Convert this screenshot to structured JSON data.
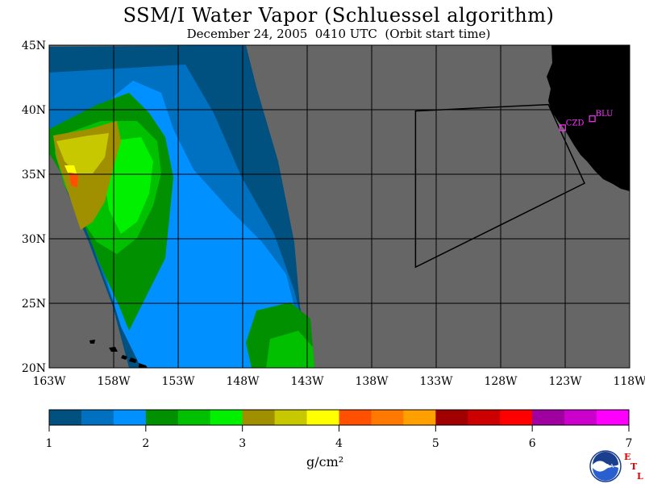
{
  "header": {
    "title": "SSM/I Water Vapor (Schluessel algorithm)",
    "subtitle": "December 24, 2005  0410 UTC  (Orbit start time)"
  },
  "map": {
    "projection": "lat-lon",
    "lon_range": [
      -163,
      -118
    ],
    "lat_range": [
      20,
      45
    ],
    "x_ticks": [
      {
        "lon": -163,
        "label": "163W"
      },
      {
        "lon": -158,
        "label": "158W"
      },
      {
        "lon": -153,
        "label": "153W"
      },
      {
        "lon": -148,
        "label": "148W"
      },
      {
        "lon": -143,
        "label": "143W"
      },
      {
        "lon": -138,
        "label": "138W"
      },
      {
        "lon": -133,
        "label": "133W"
      },
      {
        "lon": -128,
        "label": "128W"
      },
      {
        "lon": -123,
        "label": "123W"
      },
      {
        "lon": -118,
        "label": "118W"
      }
    ],
    "y_ticks": [
      {
        "lat": 45,
        "label": "45N"
      },
      {
        "lat": 40,
        "label": "40N"
      },
      {
        "lat": 35,
        "label": "35N"
      },
      {
        "lat": 30,
        "label": "30N"
      },
      {
        "lat": 25,
        "label": "25N"
      },
      {
        "lat": 20,
        "label": "20N"
      }
    ],
    "colors": {
      "no_data": "#666666",
      "land": "#000000",
      "grid": "#000000",
      "station": "#ff33ff"
    },
    "stations": [
      {
        "label": "CZD",
        "lon": -123.2,
        "lat": 38.6
      },
      {
        "label": "BLU",
        "lon": -120.9,
        "lat": 39.3
      }
    ],
    "domain_outline": [
      {
        "lon": -134.6,
        "lat": 39.9
      },
      {
        "lon": -124.3,
        "lat": 40.4
      },
      {
        "lon": -121.5,
        "lat": 34.3
      },
      {
        "lon": -134.6,
        "lat": 27.8
      }
    ]
  },
  "colorbar": {
    "units": "g/cm²",
    "min": 1,
    "max": 7,
    "bins": [
      "#005080",
      "#0070c0",
      "#0090ff",
      "#009000",
      "#00c000",
      "#00f000",
      "#a09000",
      "#c8c800",
      "#ffff00",
      "#ff5000",
      "#ff7800",
      "#ffa000",
      "#a00000",
      "#cc0000",
      "#ff0000",
      "#a000a0",
      "#cc00cc",
      "#ff00ff"
    ],
    "tick_labels": [
      {
        "value": 1,
        "label": "1"
      },
      {
        "value": 2,
        "label": "2"
      },
      {
        "value": 3,
        "label": "3"
      },
      {
        "value": 4,
        "label": "4"
      },
      {
        "value": 5,
        "label": "5"
      },
      {
        "value": 6,
        "label": "6"
      },
      {
        "value": 7,
        "label": "7"
      }
    ]
  },
  "logos": {
    "noaa_text": "NOAA",
    "etl_letters": [
      "E",
      "T",
      "L"
    ]
  }
}
